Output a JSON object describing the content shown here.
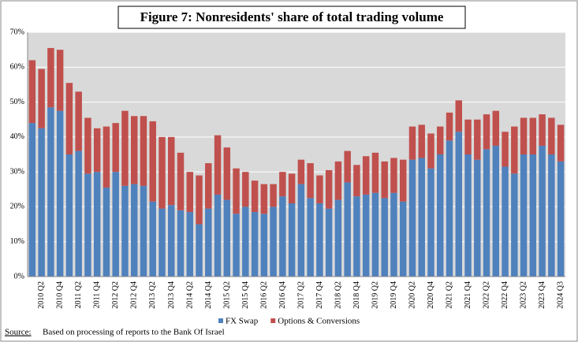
{
  "chart_data": {
    "type": "stacked_bar",
    "title": "Figure 7:  Nonresidents' share of total trading volume",
    "categories": [
      null,
      "2010 Q2",
      null,
      "2010 Q4",
      null,
      "2011 Q2",
      null,
      "2011 Q4",
      null,
      "2012 Q2",
      null,
      "2012 Q4",
      null,
      "2013 Q2",
      null,
      "2013 Q4",
      null,
      "2014 Q2",
      null,
      "2014 Q4",
      null,
      "2015 Q2",
      null,
      "2015 Q4",
      null,
      "2016 Q2",
      null,
      "2016 Q4",
      null,
      "2017 Q2",
      null,
      "2017 Q4",
      null,
      "2018 Q2",
      null,
      "2018 Q4",
      null,
      "2019 Q2",
      null,
      "2019 Q4",
      null,
      "2020 Q2",
      null,
      "2020 Q4",
      null,
      "2021 Q2",
      null,
      "2021 Q4",
      null,
      "2022 Q2",
      null,
      "2022 Q4",
      null,
      "2023 Q2",
      null,
      "2023 Q4",
      null,
      "2024 Q3"
    ],
    "series": [
      {
        "name": "FX Swap",
        "color": "#4f81bd",
        "values": [
          44,
          42.5,
          48.5,
          47.5,
          35,
          36,
          29.5,
          30,
          25.5,
          30,
          26,
          26.5,
          26,
          21.5,
          19.5,
          20.5,
          19,
          18.5,
          15,
          19.5,
          23.5,
          22,
          18,
          20,
          18.5,
          18,
          20,
          23,
          21,
          26.5,
          22.5,
          21,
          19.5,
          22,
          27,
          23,
          23.5,
          24,
          22.5,
          24,
          21.5,
          33.5,
          34,
          31,
          35,
          39,
          41.5,
          35,
          33.5,
          36.5,
          37.5,
          31.5,
          29.5,
          35,
          35,
          37.5,
          35,
          33
        ]
      },
      {
        "name": "Options & Conversions",
        "color": "#c0504d",
        "values": [
          18,
          17,
          17,
          17.5,
          20.5,
          17,
          16,
          12.5,
          17.5,
          14,
          21.5,
          19.5,
          20,
          23,
          20.5,
          19.5,
          16.5,
          11.5,
          14,
          13,
          17,
          15,
          13,
          10,
          9,
          8.5,
          6.5,
          7,
          8.5,
          7,
          10,
          8,
          11,
          11,
          9,
          9,
          11,
          11.5,
          10.5,
          10,
          12,
          9.5,
          9.5,
          10,
          8,
          8,
          9,
          10,
          11.5,
          10,
          10,
          10,
          13.5,
          10.5,
          10.5,
          9,
          10.5,
          10.5
        ]
      }
    ],
    "ylim": [
      0,
      70
    ],
    "yticks": [
      {
        "value": 0,
        "label": "0%"
      },
      {
        "value": 10,
        "label": "10%"
      },
      {
        "value": 20,
        "label": "20%"
      },
      {
        "value": 30,
        "label": "30%"
      },
      {
        "value": 40,
        "label": "40%"
      },
      {
        "value": 50,
        "label": "50%"
      },
      {
        "value": 60,
        "label": "60%"
      },
      {
        "value": 70,
        "label": "70%"
      }
    ],
    "grid": true,
    "legend": "bottom",
    "source_label": "Source:",
    "source": "Based on processing of reports to the Bank Of Israel"
  }
}
